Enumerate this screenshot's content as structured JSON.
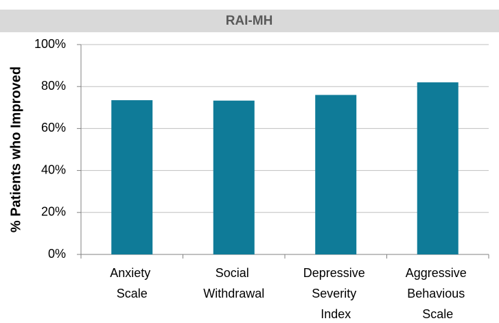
{
  "chart_data": {
    "type": "bar",
    "title": "RAI-MH",
    "ylabel": "% Patients who Improved",
    "categories": [
      "Anxiety Scale",
      "Social Withdrawal",
      "Depressive Severity Index",
      "Aggressive Behavious Scale"
    ],
    "values": [
      73.5,
      73.3,
      76,
      82
    ],
    "color": "#0f7b98",
    "ylim": [
      0,
      100
    ],
    "yticks": [
      {
        "value": 0,
        "label": "0%"
      },
      {
        "value": 20,
        "label": "20%"
      },
      {
        "value": 40,
        "label": "40%"
      },
      {
        "value": 60,
        "label": "60%"
      },
      {
        "value": 80,
        "label": "80%"
      },
      {
        "value": 100,
        "label": "100%"
      }
    ],
    "grid": true
  }
}
